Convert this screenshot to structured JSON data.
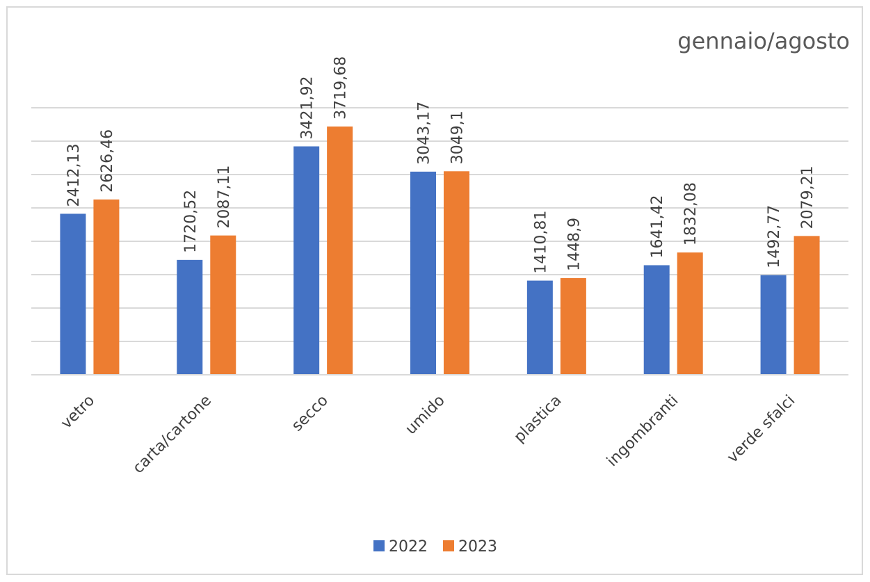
{
  "chart_data": {
    "type": "bar",
    "title": "gennaio/agosto",
    "categories": [
      "vetro",
      "carta/cartone",
      "secco",
      "umido",
      "plastica",
      "ingombranti",
      "verde sfalci"
    ],
    "series": [
      {
        "name": "2022",
        "color": "#4472c4",
        "values": [
          2412.13,
          1720.52,
          3421.92,
          3043.17,
          1410.81,
          1641.42,
          1492.77
        ],
        "value_labels": [
          "2412,13",
          "1720,52",
          "3421,92",
          "3043,17",
          "1410,81",
          "1641,42",
          "1492,77"
        ]
      },
      {
        "name": "2023",
        "color": "#ed7d31",
        "values": [
          2626.46,
          2087.11,
          3719.68,
          3049.1,
          1448.9,
          1832.08,
          2079.21
        ],
        "value_labels": [
          "2626,46",
          "2087,11",
          "3719,68",
          "3049,1",
          "1448,9",
          "1832,08",
          "2079,21"
        ]
      }
    ],
    "ylim": [
      0,
      4000
    ],
    "yticks": [
      0,
      500,
      1000,
      1500,
      2000,
      2500,
      3000,
      3500,
      4000
    ],
    "grid": true,
    "legend": "bottom"
  }
}
